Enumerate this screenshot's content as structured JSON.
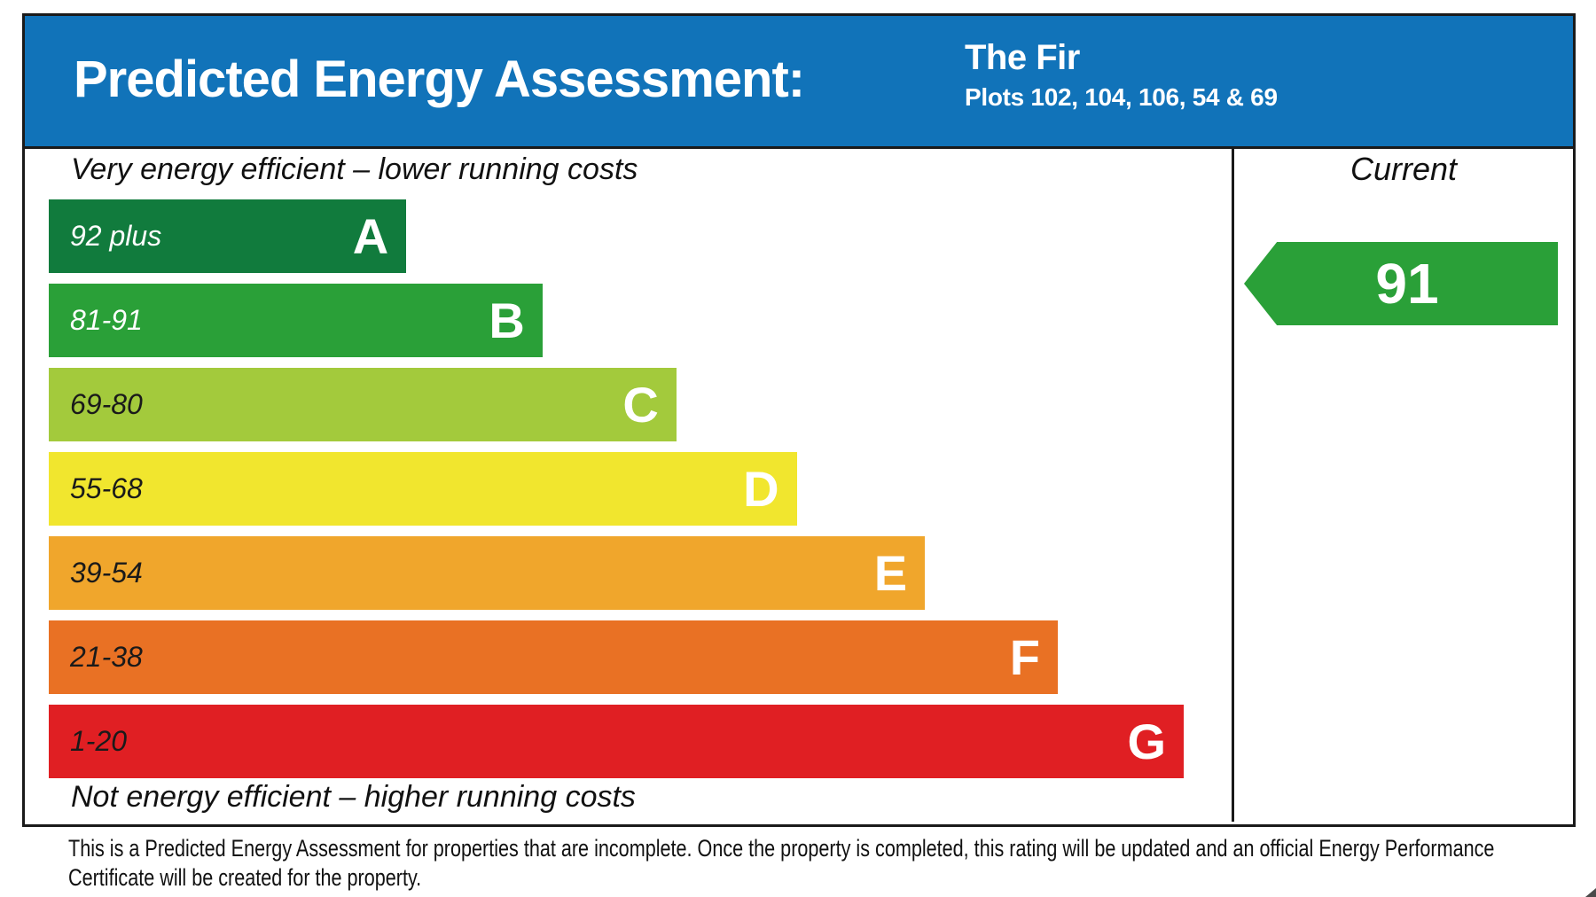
{
  "header": {
    "title": "Predicted Energy Assessment:",
    "property_name": "The Fir",
    "plots": "Plots 102, 104, 106, 54 & 69",
    "background_color": "#1173b9"
  },
  "chart_data": {
    "type": "bar",
    "title": "Predicted Energy Assessment",
    "subtitle": "The Fir — Plots 102, 104, 106, 54 & 69",
    "top_caption": "Very energy efficient – lower running costs",
    "bottom_caption": "Not energy efficient – higher running costs",
    "legend_position": "right-column",
    "column_header": "Current",
    "bands": [
      {
        "letter": "A",
        "range": "92 plus",
        "color": "#117b3d",
        "label_color": "#ffffff",
        "width_pct": 31.5
      },
      {
        "letter": "B",
        "range": "81-91",
        "color": "#2aa038",
        "label_color": "#ffffff",
        "width_pct": 43.5
      },
      {
        "letter": "C",
        "range": "69-80",
        "color": "#a3ca3c",
        "label_color": "#1a1a1a",
        "width_pct": 55.3
      },
      {
        "letter": "D",
        "range": "55-68",
        "color": "#f1e62e",
        "label_color": "#1a1a1a",
        "width_pct": 65.9
      },
      {
        "letter": "E",
        "range": "39-54",
        "color": "#f0a62c",
        "label_color": "#1a1a1a",
        "width_pct": 77.2
      },
      {
        "letter": "F",
        "range": "21-38",
        "color": "#e97124",
        "label_color": "#1a1a1a",
        "width_pct": 88.9
      },
      {
        "letter": "G",
        "range": "1-20",
        "color": "#e01f23",
        "label_color": "#1a1a1a",
        "width_pct": 100
      }
    ],
    "current": {
      "label": "Current",
      "value": "91",
      "band": "B",
      "arrow_color": "#2aa038"
    }
  },
  "footer": {
    "text": "This is a Predicted Energy Assessment for properties that are incomplete. Once the property is completed, this rating will be updated and an official Energy Performance Certificate will be created for the property."
  }
}
